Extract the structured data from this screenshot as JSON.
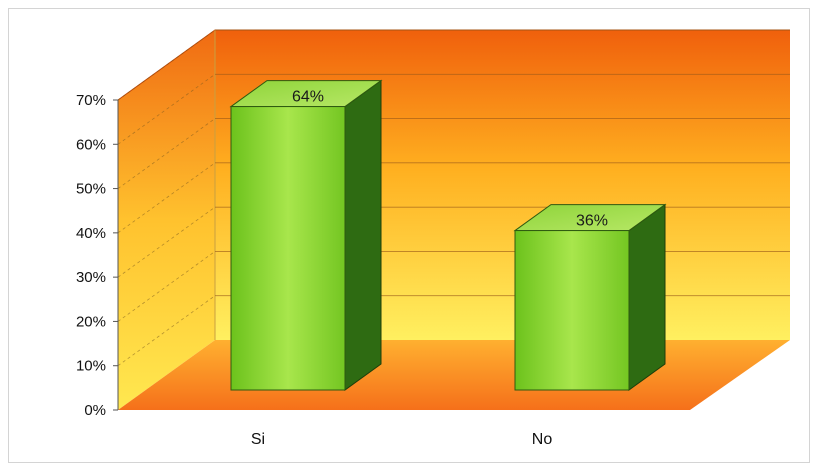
{
  "chart_data": {
    "type": "bar",
    "title": "",
    "xlabel": "",
    "ylabel": "",
    "categories": [
      "Si",
      "No"
    ],
    "values": [
      64,
      36
    ],
    "data_labels": [
      "64%",
      "36%"
    ],
    "ylim": [
      0,
      70
    ],
    "yticks": [
      "0%",
      "10%",
      "20%",
      "30%",
      "40%",
      "50%",
      "60%",
      "70%"
    ],
    "grid": true,
    "legend": "none",
    "style": "3d-column",
    "colors": {
      "bar_front": "#7ed321",
      "bar_side": "#2e6b12",
      "bar_top": "#a8e04a",
      "back_top": "#f26a10",
      "back_bottom": "#ffe84a",
      "floor": "#f78a1c"
    }
  }
}
